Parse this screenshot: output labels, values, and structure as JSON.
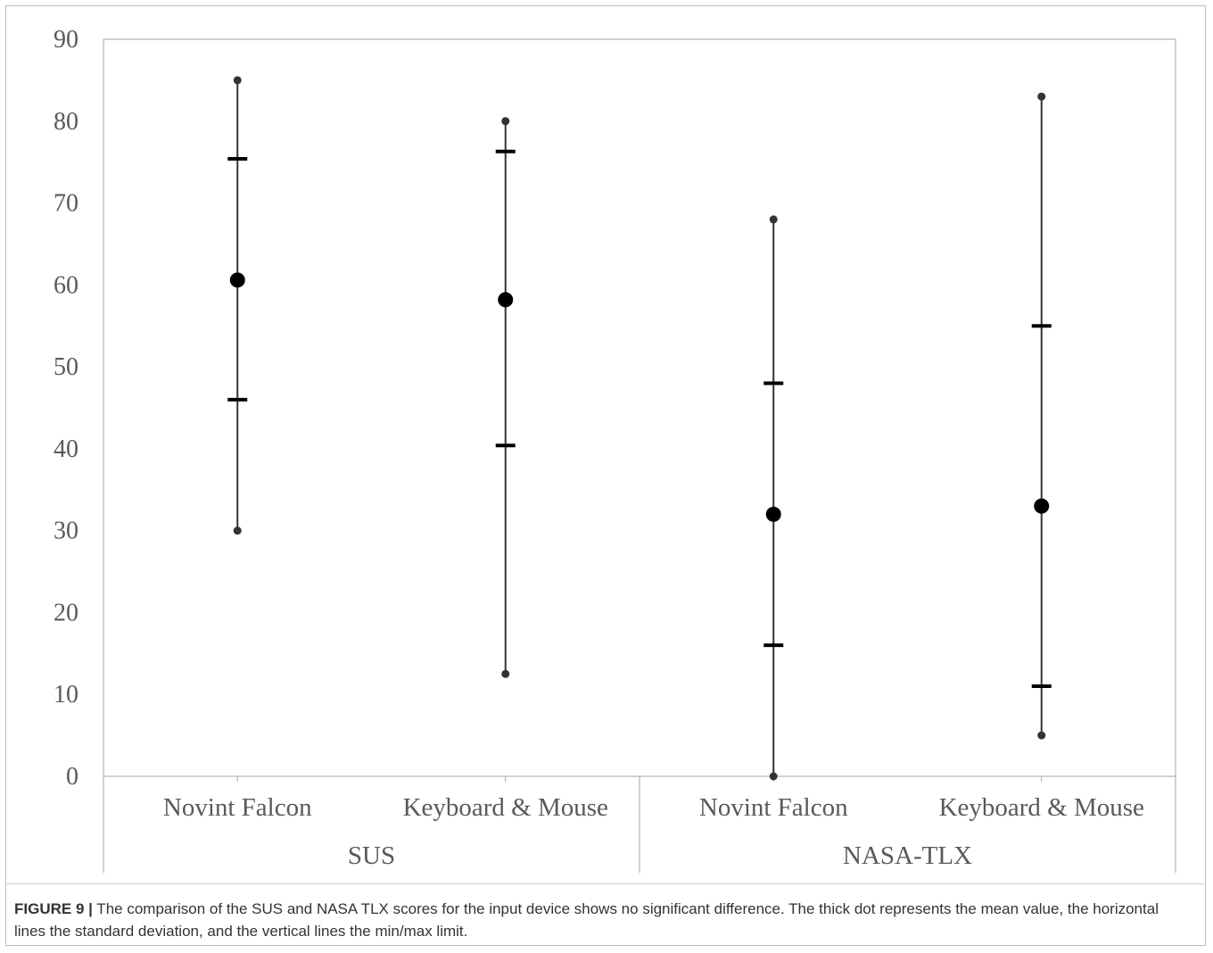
{
  "chart_data": {
    "type": "scatter",
    "ylim": [
      0,
      90
    ],
    "yticks": [
      0,
      10,
      20,
      30,
      40,
      50,
      60,
      70,
      80,
      90
    ],
    "grid": false,
    "groups": [
      {
        "name": "SUS",
        "items": [
          {
            "label": "Novint Falcon",
            "min": 30,
            "sd_low": 46,
            "mean": 60.6,
            "sd_high": 75.4,
            "max": 85
          },
          {
            "label": "Keyboard & Mouse",
            "min": 12.5,
            "sd_low": 40.4,
            "mean": 58.2,
            "sd_high": 76.3,
            "max": 80
          }
        ]
      },
      {
        "name": "NASA-TLX",
        "items": [
          {
            "label": "Novint Falcon",
            "min": 0,
            "sd_low": 16,
            "mean": 32,
            "sd_high": 48,
            "max": 68
          },
          {
            "label": "Keyboard & Mouse",
            "min": 5,
            "sd_low": 11,
            "mean": 33,
            "sd_high": 55,
            "max": 83
          }
        ]
      }
    ]
  },
  "caption": {
    "label": "FIGURE 9 |",
    "text": " The comparison of the SUS and NASA TLX scores for the input device shows no significant difference. The thick dot represents the mean value, the horizontal lines the standard deviation, and the vertical lines the min/max limit."
  }
}
